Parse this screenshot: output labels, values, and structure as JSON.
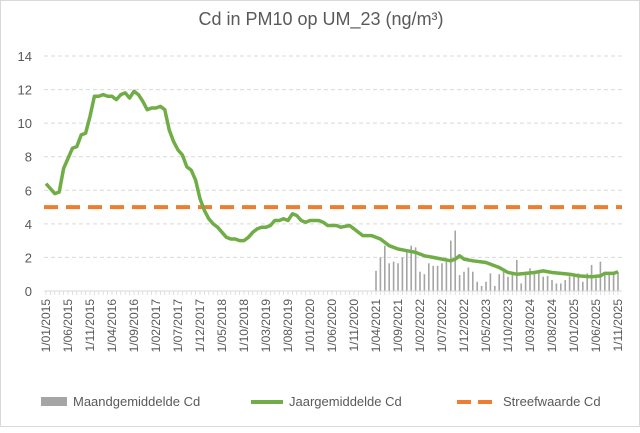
{
  "chart_data": {
    "type": "bar+line",
    "title": "Cd in PM10 op UM_23 (ng/m³)",
    "xlabel": "",
    "ylabel": "",
    "ylim": [
      0,
      14
    ],
    "yticks": [
      0,
      2,
      4,
      6,
      8,
      10,
      12,
      14
    ],
    "x_start": "2015-01",
    "x_end": "2025-11",
    "xtick_labels": [
      "1/01/2015",
      "1/06/2015",
      "1/11/2015",
      "1/04/2016",
      "1/09/2016",
      "1/02/2017",
      "1/07/2017",
      "1/12/2017",
      "1/05/2018",
      "1/10/2018",
      "1/03/2019",
      "1/08/2019",
      "1/01/2020",
      "1/06/2020",
      "1/11/2020",
      "1/04/2021",
      "1/09/2021",
      "1/02/2022",
      "1/07/2022",
      "1/12/2022",
      "1/05/2023",
      "1/10/2023",
      "1/03/2024",
      "1/08/2024",
      "1/01/2025",
      "1/06/2025",
      "1/11/2025"
    ],
    "grid": true,
    "legend_position": "bottom",
    "series": [
      {
        "name": "Maandgemiddelde Cd",
        "type": "bar",
        "color": "#a5a5a5",
        "start": "2021-04",
        "values": [
          1.2,
          2.0,
          2.7,
          1.65,
          1.75,
          1.65,
          2.0,
          2.4,
          2.7,
          2.6,
          1.15,
          1.0,
          1.65,
          1.5,
          1.5,
          1.65,
          1.75,
          3.0,
          3.6,
          0.95,
          1.15,
          1.4,
          1.15,
          0.55,
          0.3,
          0.55,
          1.05,
          0.3,
          1.0,
          1.15,
          0.85,
          1.05,
          1.85,
          0.45,
          1.05,
          1.35,
          1.15,
          1.15,
          0.85,
          0.9,
          0.65,
          0.45,
          0.45,
          0.65,
          1.0,
          0.9,
          1.05,
          0.55,
          1.05,
          1.55,
          0.75,
          1.75,
          1.15,
          0.95,
          1.05,
          1.15
        ]
      },
      {
        "name": "Jaargemiddelde Cd",
        "type": "line",
        "color": "#70ad47",
        "points": [
          [
            "2015-01",
            6.4
          ],
          [
            "2015-03",
            5.8
          ],
          [
            "2015-04",
            5.9
          ],
          [
            "2015-05",
            7.3
          ],
          [
            "2015-07",
            8.5
          ],
          [
            "2015-08",
            8.6
          ],
          [
            "2015-09",
            9.3
          ],
          [
            "2015-10",
            9.4
          ],
          [
            "2015-11",
            10.4
          ],
          [
            "2015-12",
            11.6
          ],
          [
            "2016-01",
            11.6
          ],
          [
            "2016-02",
            11.7
          ],
          [
            "2016-03",
            11.6
          ],
          [
            "2016-04",
            11.6
          ],
          [
            "2016-05",
            11.4
          ],
          [
            "2016-06",
            11.7
          ],
          [
            "2016-07",
            11.8
          ],
          [
            "2016-08",
            11.5
          ],
          [
            "2016-09",
            11.9
          ],
          [
            "2016-10",
            11.7
          ],
          [
            "2016-11",
            11.3
          ],
          [
            "2016-12",
            10.8
          ],
          [
            "2017-01",
            10.9
          ],
          [
            "2017-02",
            10.9
          ],
          [
            "2017-03",
            11.0
          ],
          [
            "2017-04",
            10.8
          ],
          [
            "2017-05",
            9.6
          ],
          [
            "2017-06",
            8.9
          ],
          [
            "2017-07",
            8.4
          ],
          [
            "2017-08",
            8.1
          ],
          [
            "2017-09",
            7.4
          ],
          [
            "2017-10",
            7.2
          ],
          [
            "2017-11",
            6.6
          ],
          [
            "2017-12",
            5.5
          ],
          [
            "2018-01",
            4.8
          ],
          [
            "2018-02",
            4.3
          ],
          [
            "2018-03",
            4.0
          ],
          [
            "2018-04",
            3.8
          ],
          [
            "2018-05",
            3.5
          ],
          [
            "2018-06",
            3.2
          ],
          [
            "2018-07",
            3.1
          ],
          [
            "2018-08",
            3.1
          ],
          [
            "2018-09",
            3.0
          ],
          [
            "2018-10",
            3.0
          ],
          [
            "2018-11",
            3.2
          ],
          [
            "2018-12",
            3.5
          ],
          [
            "2019-01",
            3.7
          ],
          [
            "2019-02",
            3.8
          ],
          [
            "2019-03",
            3.8
          ],
          [
            "2019-04",
            3.9
          ],
          [
            "2019-05",
            4.2
          ],
          [
            "2019-06",
            4.2
          ],
          [
            "2019-07",
            4.3
          ],
          [
            "2019-08",
            4.2
          ],
          [
            "2019-09",
            4.6
          ],
          [
            "2019-10",
            4.5
          ],
          [
            "2019-11",
            4.2
          ],
          [
            "2019-12",
            4.1
          ],
          [
            "2020-01",
            4.2
          ],
          [
            "2020-03",
            4.2
          ],
          [
            "2020-04",
            4.1
          ],
          [
            "2020-05",
            3.9
          ],
          [
            "2020-07",
            3.9
          ],
          [
            "2020-08",
            3.8
          ],
          [
            "2020-10",
            3.9
          ],
          [
            "2020-11",
            3.7
          ],
          [
            "2021-01",
            3.3
          ],
          [
            "2021-03",
            3.3
          ],
          [
            "2021-05",
            3.1
          ],
          [
            "2021-07",
            2.7
          ],
          [
            "2021-09",
            2.5
          ],
          [
            "2021-11",
            2.4
          ],
          [
            "2022-01",
            2.3
          ],
          [
            "2022-03",
            2.1
          ],
          [
            "2022-05",
            2.0
          ],
          [
            "2022-07",
            1.9
          ],
          [
            "2022-09",
            1.8
          ],
          [
            "2022-10",
            1.9
          ],
          [
            "2022-11",
            2.1
          ],
          [
            "2022-12",
            1.9
          ],
          [
            "2023-02",
            1.8
          ],
          [
            "2023-05",
            1.7
          ],
          [
            "2023-08",
            1.4
          ],
          [
            "2023-10",
            1.1
          ],
          [
            "2023-12",
            1.0
          ],
          [
            "2024-02",
            1.05
          ],
          [
            "2024-04",
            1.1
          ],
          [
            "2024-06",
            1.2
          ],
          [
            "2024-08",
            1.1
          ],
          [
            "2024-10",
            1.05
          ],
          [
            "2024-12",
            1.0
          ],
          [
            "2025-02",
            0.9
          ],
          [
            "2025-05",
            0.85
          ],
          [
            "2025-07",
            0.9
          ],
          [
            "2025-08",
            1.05
          ],
          [
            "2025-10",
            1.05
          ],
          [
            "2025-11",
            1.15
          ]
        ]
      },
      {
        "name": "Streefwaarde Cd",
        "type": "line",
        "style": "dashed",
        "color": "#ed7d31",
        "value": 5
      }
    ]
  }
}
